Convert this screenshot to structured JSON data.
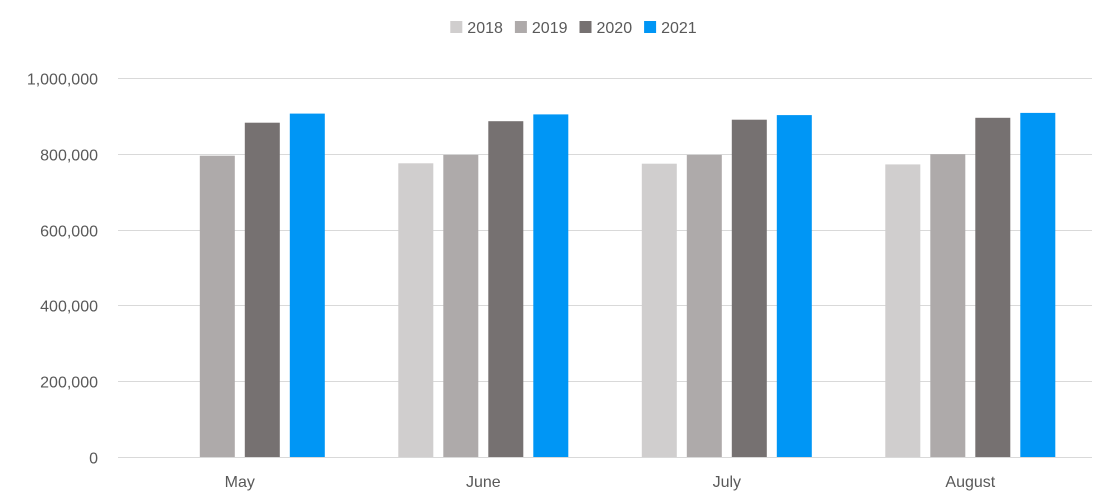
{
  "chart_data": {
    "type": "bar",
    "categories": [
      "May",
      "June",
      "July",
      "August"
    ],
    "series": [
      {
        "name": "2018",
        "values": [
          null,
          775000,
          774000,
          772000
        ]
      },
      {
        "name": "2019",
        "values": [
          795000,
          797000,
          797000,
          799000
        ]
      },
      {
        "name": "2020",
        "values": [
          882000,
          886000,
          890000,
          895000
        ]
      },
      {
        "name": "2021",
        "values": [
          906000,
          904000,
          902000,
          908000
        ]
      }
    ],
    "colors": [
      "#d0cece",
      "#aeaaaa",
      "#767171",
      "#0096f5"
    ],
    "ylim": [
      0,
      1000000
    ],
    "yticks": [
      0,
      200000,
      400000,
      600000,
      800000,
      1000000
    ],
    "ytick_labels": [
      "0",
      "200,000",
      "400,000",
      "600,000",
      "800,000",
      "1,000,000"
    ],
    "legend_position": "top-center",
    "grid": true
  }
}
